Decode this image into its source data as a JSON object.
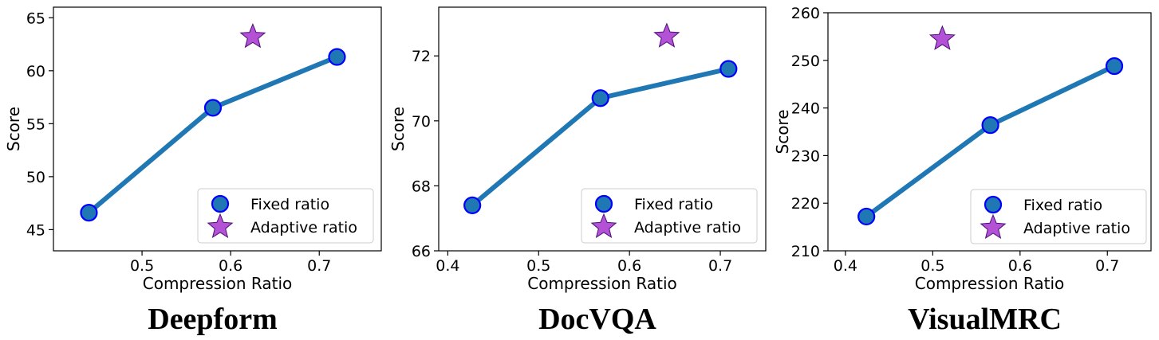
{
  "chart_data": [
    {
      "type": "line",
      "caption": "Deepform",
      "xlabel": "Compression Ratio",
      "ylabel": "Score",
      "xlim": [
        0.4,
        0.77
      ],
      "ylim": [
        43,
        66
      ],
      "xticks": [
        0.5,
        0.6,
        0.7
      ],
      "xtick_labels": [
        "0.5",
        "0.6",
        "0.7"
      ],
      "yticks": [
        45,
        50,
        55,
        60,
        65
      ],
      "ytick_labels": [
        "45",
        "50",
        "55",
        "60",
        "65"
      ],
      "grid": false,
      "legend_position": "lower-right",
      "series": [
        {
          "name": "Fixed ratio",
          "marker": "circle",
          "x": [
            0.44,
            0.58,
            0.72
          ],
          "y": [
            46.6,
            56.5,
            61.3
          ]
        },
        {
          "name": "Adaptive ratio",
          "marker": "star",
          "x": [
            0.625
          ],
          "y": [
            63.2
          ]
        }
      ]
    },
    {
      "type": "line",
      "caption": "DocVQA",
      "xlabel": "Compression Ratio",
      "ylabel": "Score",
      "xlim": [
        0.39,
        0.75
      ],
      "ylim": [
        66,
        73.5
      ],
      "xticks": [
        0.4,
        0.5,
        0.6,
        0.7
      ],
      "xtick_labels": [
        "0.4",
        "0.5",
        "0.6",
        "0.7"
      ],
      "yticks": [
        66,
        68,
        70,
        72
      ],
      "ytick_labels": [
        "66",
        "68",
        "70",
        "72"
      ],
      "grid": false,
      "legend_position": "lower-right",
      "series": [
        {
          "name": "Fixed ratio",
          "marker": "circle",
          "x": [
            0.427,
            0.568,
            0.709
          ],
          "y": [
            67.4,
            70.7,
            71.6
          ]
        },
        {
          "name": "Adaptive ratio",
          "marker": "star",
          "x": [
            0.641
          ],
          "y": [
            72.6
          ]
        }
      ]
    },
    {
      "type": "line",
      "caption": "VisualMRC",
      "xlabel": "Compression Ratio",
      "ylabel": "Score",
      "xlim": [
        0.38,
        0.75
      ],
      "ylim": [
        210,
        260
      ],
      "xticks": [
        0.4,
        0.5,
        0.6,
        0.7
      ],
      "xtick_labels": [
        "0.4",
        "0.5",
        "0.6",
        "0.7"
      ],
      "yticks": [
        210,
        220,
        230,
        240,
        250,
        260
      ],
      "ytick_labels": [
        "210",
        "220",
        "230",
        "240",
        "250",
        "260"
      ],
      "grid": false,
      "legend_position": "lower-right",
      "series": [
        {
          "name": "Fixed ratio",
          "marker": "circle",
          "x": [
            0.424,
            0.566,
            0.708
          ],
          "y": [
            217.2,
            236.4,
            248.8
          ]
        },
        {
          "name": "Adaptive ratio",
          "marker": "star",
          "x": [
            0.511
          ],
          "y": [
            254.5
          ]
        }
      ]
    }
  ],
  "colors": {
    "line": "#1f77b4",
    "circle_fill": "#1f77b4",
    "circle_edge": "#0000ff",
    "star_fill": "#b452d6",
    "star_edge": "#4b0f78"
  }
}
